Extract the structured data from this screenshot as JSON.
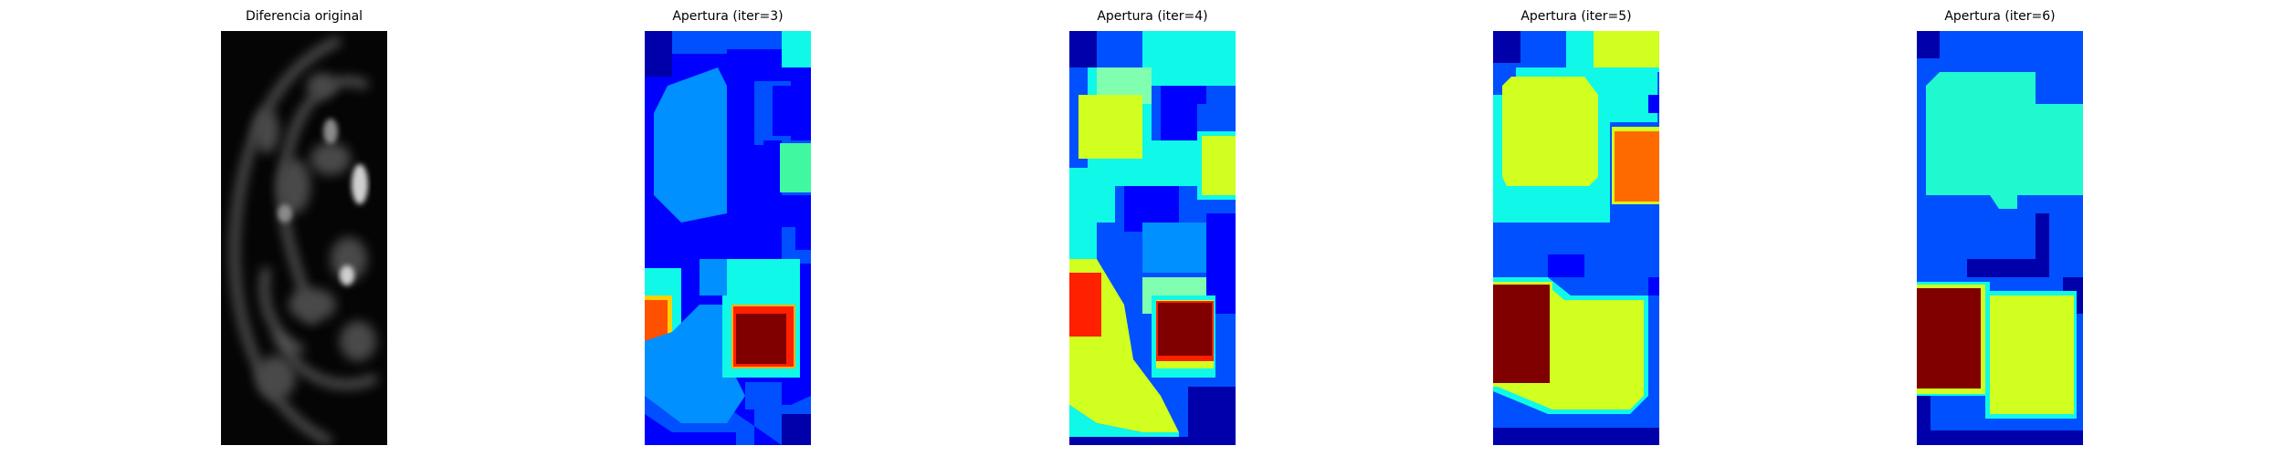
{
  "panels": [
    {
      "title": "Diferencia original"
    },
    {
      "title": "Apertura (iter=3)"
    },
    {
      "title": "Apertura (iter=4)"
    },
    {
      "title": "Apertura (iter=5)"
    },
    {
      "title": "Apertura (iter=6)"
    }
  ],
  "colormaps": {
    "grayscale": "gray",
    "labels": "jet"
  },
  "colors": {
    "background": "#ffffff",
    "jet_dark_blue": "#00008f",
    "jet_blue": "#0000ff",
    "jet_mid_blue": "#0050ff",
    "jet_light_blue": "#0090ff",
    "jet_cyan": "#10f8e8",
    "jet_light_green": "#80ffb0",
    "jet_yellow": "#d0ff20",
    "jet_orange": "#ff6a00",
    "jet_red": "#ff2000",
    "jet_dark_red": "#800000"
  }
}
